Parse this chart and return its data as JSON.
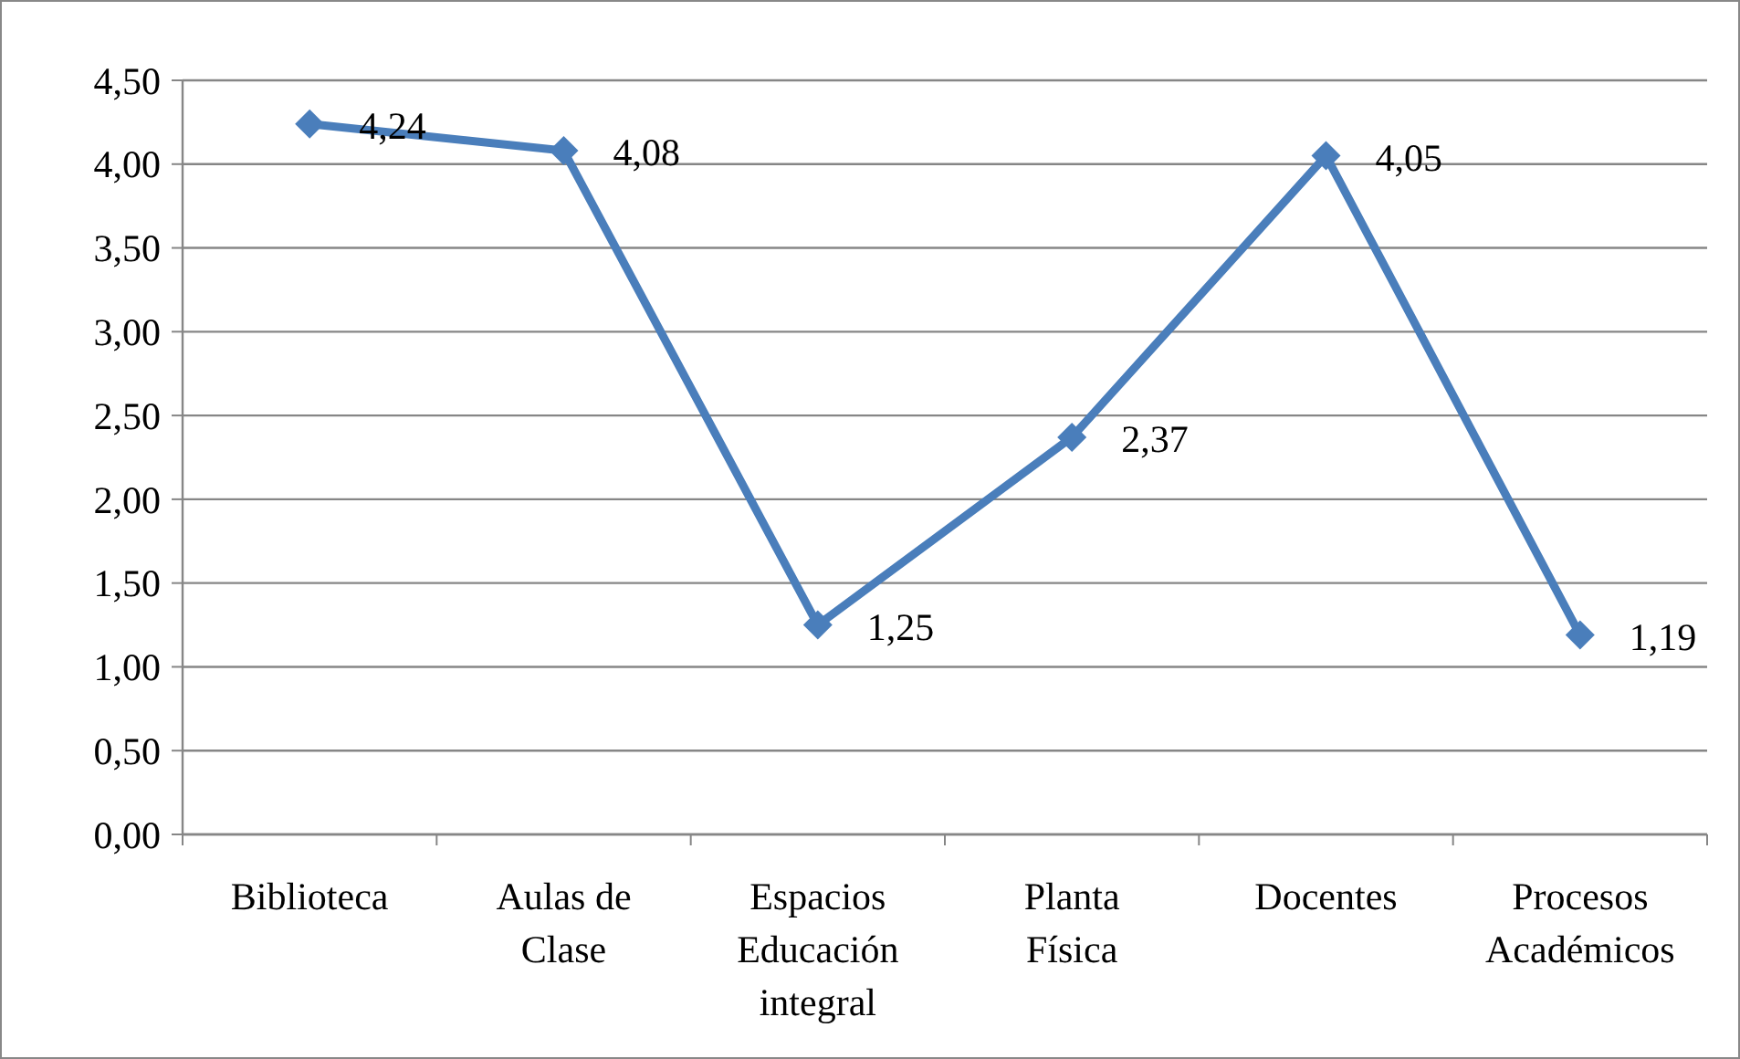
{
  "chart_data": {
    "type": "line",
    "categories": [
      "Biblioteca",
      "Aulas de Clase",
      "Espacios Educación integral",
      "Planta Física",
      "Docentes",
      "Procesos Académicos"
    ],
    "series": [
      {
        "color": "#4a7ebb",
        "values": [
          4.24,
          4.08,
          1.25,
          2.37,
          4.05,
          1.19
        ],
        "value_labels": [
          "4,24",
          "4,08",
          "1,25",
          "2,37",
          "4,05",
          "1,19"
        ]
      }
    ],
    "ylim": [
      0,
      4.5
    ],
    "yticks": [
      {
        "value": 0,
        "label": "0,00"
      },
      {
        "value": 0.5,
        "label": "0,50"
      },
      {
        "value": 1,
        "label": "1,00"
      },
      {
        "value": 1.5,
        "label": "1,50"
      },
      {
        "value": 2,
        "label": "2,00"
      },
      {
        "value": 2.5,
        "label": "2,50"
      },
      {
        "value": 3,
        "label": "3,00"
      },
      {
        "value": 3.5,
        "label": "3,50"
      },
      {
        "value": 4,
        "label": "4,00"
      },
      {
        "value": 4.5,
        "label": "4,50"
      }
    ],
    "grid": "y",
    "marker": "diamond",
    "line_style": "solid"
  }
}
